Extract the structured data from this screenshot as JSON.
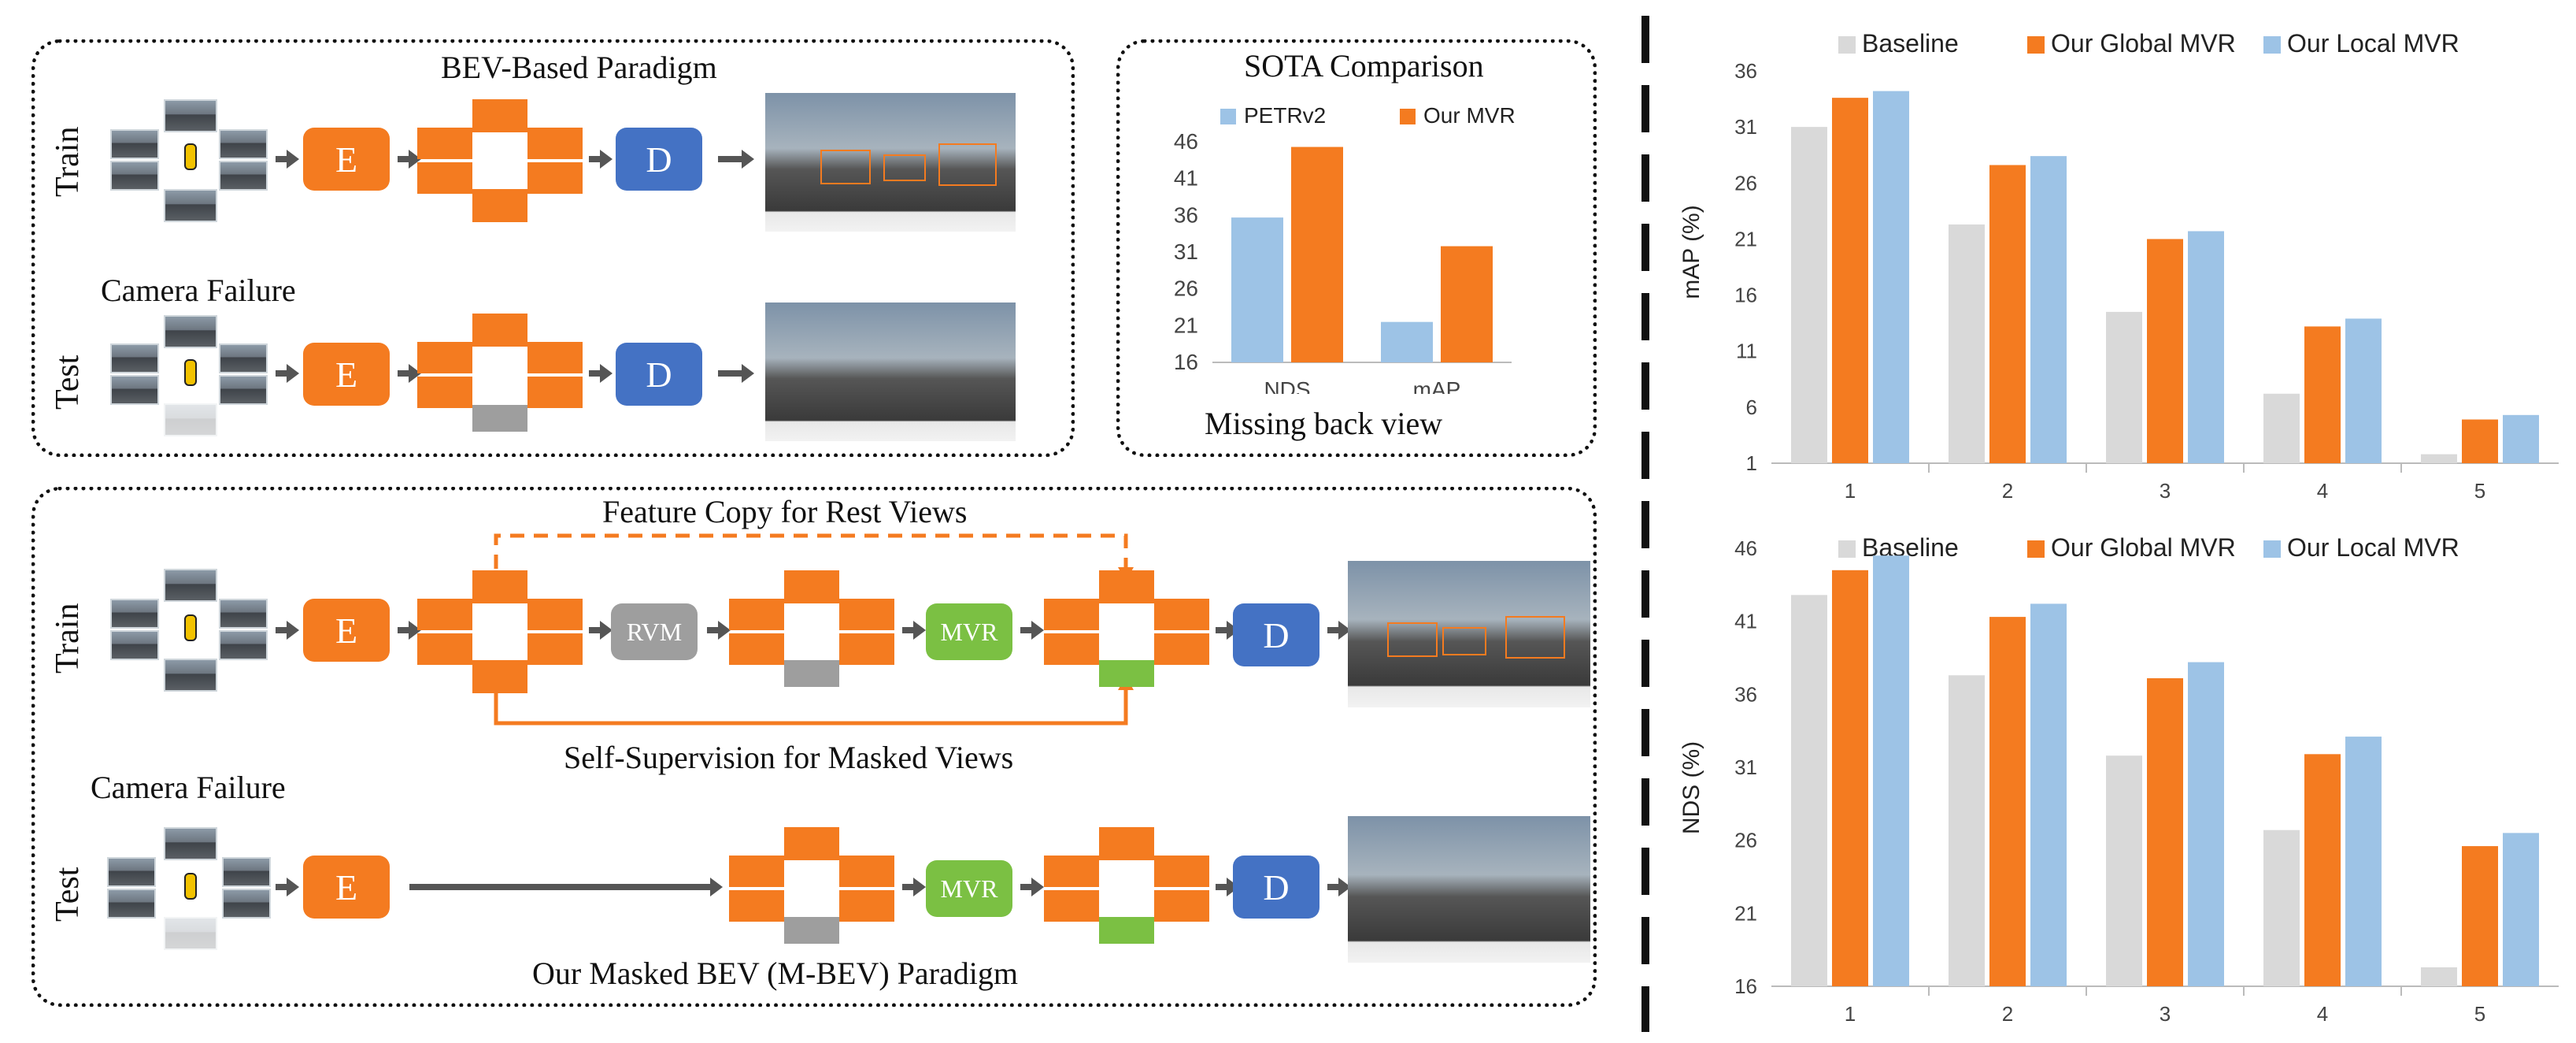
{
  "panel_a": {
    "title": "BEV-Based Paradigm",
    "row_train": "Train",
    "row_test": "Test",
    "camera_failure": "Camera Failure",
    "encoder": "E",
    "decoder": "D"
  },
  "panel_sota": {
    "title": "SOTA Comparison",
    "caption": "Missing back view",
    "chart_data": {
      "type": "bar",
      "categories": [
        "NDS",
        "mAP"
      ],
      "series": [
        {
          "name": "PETRv2",
          "values": [
            35.7,
            21.5
          ],
          "color": "#9dc3e6"
        },
        {
          "name": "Our MVR",
          "values": [
            45.3,
            31.8
          ],
          "color": "#f47b20"
        }
      ],
      "yticks": [
        "46",
        "41",
        "36",
        "31",
        "26",
        "21",
        "16"
      ],
      "ylim": [
        16,
        46
      ]
    }
  },
  "panel_b": {
    "title": "Our Masked BEV (M-BEV) Paradigm",
    "feature_copy": "Feature Copy for Rest Views",
    "self_supervision": "Self-Supervision for Masked Views",
    "row_train": "Train",
    "row_test": "Test",
    "camera_failure": "Camera Failure",
    "encoder": "E",
    "rvm": "RVM",
    "mvr": "MVR",
    "decoder": "D"
  },
  "right_charts": [
    {
      "type": "bar",
      "ylabel": "mAP (%)",
      "categories": [
        "1",
        "2",
        "3",
        "4",
        "5"
      ],
      "yticks": [
        "36",
        "31",
        "26",
        "21",
        "16",
        "11",
        "6",
        "1"
      ],
      "ylim": [
        1,
        36
      ],
      "legend": "top",
      "series": [
        {
          "name": "Baseline",
          "values": [
            31.0,
            22.3,
            14.5,
            7.2,
            1.8
          ],
          "color": "#d9d9d9"
        },
        {
          "name": "Our Global MVR",
          "values": [
            33.6,
            27.6,
            21.0,
            13.2,
            4.9
          ],
          "color": "#f47b20"
        },
        {
          "name": "Our Local MVR",
          "values": [
            34.2,
            28.4,
            21.7,
            13.9,
            5.3
          ],
          "color": "#9dc3e6"
        }
      ]
    },
    {
      "type": "bar",
      "ylabel": "NDS (%)",
      "categories": [
        "1",
        "2",
        "3",
        "4",
        "5"
      ],
      "yticks": [
        "46",
        "41",
        "36",
        "31",
        "26",
        "21",
        "16"
      ],
      "ylim": [
        16,
        46
      ],
      "legend": "top",
      "series": [
        {
          "name": "Baseline",
          "values": [
            42.8,
            37.3,
            31.8,
            26.7,
            17.3
          ],
          "color": "#d9d9d9"
        },
        {
          "name": "Our Global MVR",
          "values": [
            44.5,
            41.3,
            37.1,
            31.9,
            25.6
          ],
          "color": "#f47b20"
        },
        {
          "name": "Our Local MVR",
          "values": [
            45.5,
            42.2,
            38.2,
            33.1,
            26.5
          ],
          "color": "#9dc3e6"
        }
      ]
    }
  ]
}
